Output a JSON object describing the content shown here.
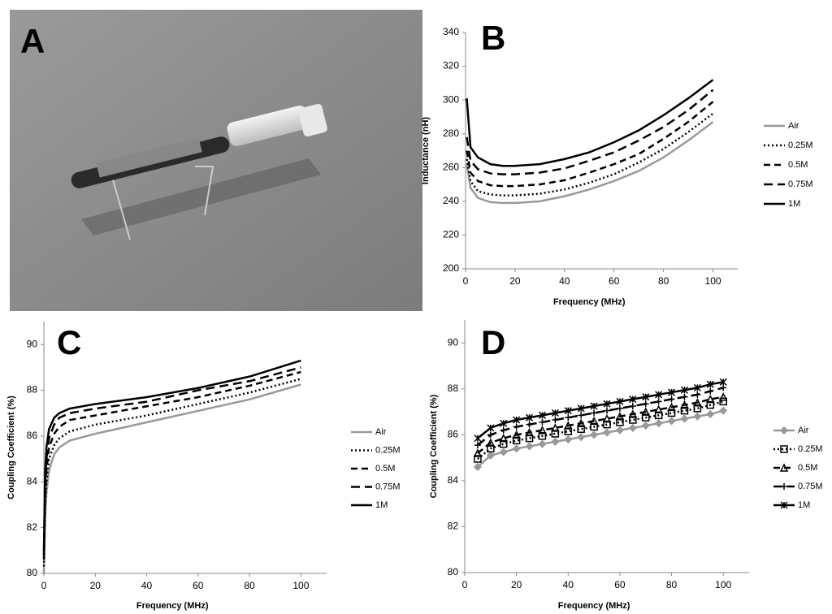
{
  "photo": {
    "label": "A"
  },
  "chart_data": [
    {
      "type": "line",
      "label": "B",
      "xlabel": "Frequency (MHz)",
      "ylabel": "Inductance  (nH)",
      "xlim": [
        0,
        110
      ],
      "xticks": [
        0,
        20,
        40,
        60,
        80,
        100
      ],
      "ylim": [
        200,
        340
      ],
      "yticks": [
        200,
        220,
        240,
        260,
        280,
        300,
        320,
        340
      ],
      "grid": false,
      "legend": "right",
      "x": [
        0.5,
        2,
        5,
        10,
        15,
        20,
        30,
        40,
        50,
        60,
        70,
        80,
        90,
        100
      ],
      "series": [
        {
          "name": "Air",
          "color": "#999999",
          "dash": "solid",
          "values": [
            262,
            248,
            242,
            239.5,
            239,
            239,
            240,
            243,
            247,
            252,
            258,
            266,
            276,
            287
          ]
        },
        {
          "name": "0.25M",
          "color": "#000000",
          "dash": "dotted",
          "values": [
            265,
            252,
            246,
            244,
            243.5,
            243.5,
            244.5,
            247,
            251,
            256,
            263,
            271,
            281,
            292
          ]
        },
        {
          "name": "0.5M",
          "color": "#000000",
          "dash": "dashed",
          "values": [
            270,
            257,
            252,
            249.5,
            249,
            249,
            250,
            252.5,
            257,
            262,
            268,
            277,
            287,
            299
          ]
        },
        {
          "name": "0.75M",
          "color": "#000000",
          "dash": "longdash",
          "values": [
            278,
            264,
            259,
            256.5,
            256,
            256,
            257,
            259.5,
            264,
            269,
            276,
            284,
            294,
            306
          ]
        },
        {
          "name": "1M",
          "color": "#000000",
          "dash": "solid",
          "values": [
            301,
            272,
            266,
            262,
            261,
            261,
            262,
            265,
            269,
            275,
            282,
            291,
            301,
            312
          ]
        }
      ]
    },
    {
      "type": "line",
      "label": "C",
      "xlabel": "Frequency (MHz)",
      "ylabel": "Coupling Coefficient (%)",
      "xlim": [
        0,
        110
      ],
      "xticks": [
        0,
        20,
        40,
        60,
        80,
        100
      ],
      "ylim": [
        80,
        91
      ],
      "yticks": [
        80,
        82,
        84,
        86,
        88,
        90
      ],
      "grid": false,
      "legend": "right",
      "x": [
        0,
        0.5,
        1,
        2,
        4,
        6,
        10,
        20,
        40,
        60,
        80,
        100
      ],
      "series": [
        {
          "name": "Air",
          "color": "#999999",
          "dash": "solid",
          "values": [
            80,
            82.5,
            83.5,
            84.5,
            85.2,
            85.5,
            85.8,
            86.1,
            86.6,
            87.1,
            87.6,
            88.25
          ]
        },
        {
          "name": "0.25M",
          "color": "#000000",
          "dash": "dotted",
          "values": [
            80.3,
            83,
            84,
            85,
            85.6,
            85.9,
            86.2,
            86.5,
            86.9,
            87.4,
            87.9,
            88.5
          ]
        },
        {
          "name": "0.5M",
          "color": "#000000",
          "dash": "dashed",
          "values": [
            80.6,
            83.5,
            84.5,
            85.5,
            86.1,
            86.4,
            86.7,
            86.9,
            87.3,
            87.7,
            88.2,
            88.8
          ]
        },
        {
          "name": "0.75M",
          "color": "#000000",
          "dash": "longdash",
          "values": [
            80.8,
            84,
            85,
            85.9,
            86.5,
            86.8,
            87.0,
            87.2,
            87.5,
            88.0,
            88.4,
            89.0
          ]
        },
        {
          "name": "1M",
          "color": "#000000",
          "dash": "solid",
          "values": [
            81,
            84.5,
            85.5,
            86.3,
            86.8,
            87.0,
            87.2,
            87.4,
            87.7,
            88.1,
            88.6,
            89.3
          ]
        }
      ]
    },
    {
      "type": "line",
      "label": "D",
      "xlabel": "Frequency (MHz)",
      "ylabel": "Coupling Coefficient (%)",
      "xlim": [
        0,
        110
      ],
      "xticks": [
        0,
        20,
        40,
        60,
        80,
        100
      ],
      "ylim": [
        80,
        91
      ],
      "yticks": [
        80,
        82,
        84,
        86,
        88,
        90
      ],
      "grid": false,
      "legend": "right",
      "x": [
        5,
        10,
        15,
        20,
        25,
        30,
        35,
        40,
        45,
        50,
        55,
        60,
        65,
        70,
        75,
        80,
        85,
        90,
        95,
        100
      ],
      "series": [
        {
          "name": "Air",
          "color": "#999999",
          "dash": "solid",
          "marker": "diamond",
          "values": [
            84.6,
            85.1,
            85.25,
            85.4,
            85.5,
            85.6,
            85.7,
            85.8,
            85.9,
            86.0,
            86.1,
            86.2,
            86.3,
            86.4,
            86.5,
            86.6,
            86.7,
            86.8,
            86.9,
            87.05
          ]
        },
        {
          "name": "0.25M",
          "color": "#000000",
          "dash": "dotted",
          "marker": "square",
          "values": [
            84.95,
            85.4,
            85.6,
            85.75,
            85.85,
            85.95,
            86.05,
            86.15,
            86.25,
            86.35,
            86.45,
            86.55,
            86.65,
            86.75,
            86.85,
            86.95,
            87.05,
            87.15,
            87.3,
            87.45
          ]
        },
        {
          "name": "0.5M",
          "color": "#000000",
          "dash": "dashed",
          "marker": "triangle",
          "values": [
            85.2,
            85.65,
            85.85,
            86.0,
            86.1,
            86.2,
            86.3,
            86.4,
            86.5,
            86.6,
            86.7,
            86.8,
            86.9,
            87.0,
            87.1,
            87.2,
            87.3,
            87.4,
            87.55,
            87.65
          ]
        },
        {
          "name": "0.75M",
          "color": "#000000",
          "dash": "longdash",
          "marker": "plus",
          "values": [
            85.55,
            86.0,
            86.2,
            86.35,
            86.45,
            86.55,
            86.65,
            86.75,
            86.85,
            86.95,
            87.05,
            87.15,
            87.25,
            87.35,
            87.45,
            87.55,
            87.65,
            87.75,
            87.9,
            88.05
          ]
        },
        {
          "name": "1M",
          "color": "#000000",
          "dash": "solid",
          "marker": "star",
          "values": [
            85.85,
            86.3,
            86.5,
            86.65,
            86.75,
            86.85,
            86.95,
            87.05,
            87.15,
            87.25,
            87.35,
            87.45,
            87.55,
            87.65,
            87.75,
            87.85,
            87.95,
            88.05,
            88.2,
            88.3
          ]
        }
      ]
    }
  ]
}
